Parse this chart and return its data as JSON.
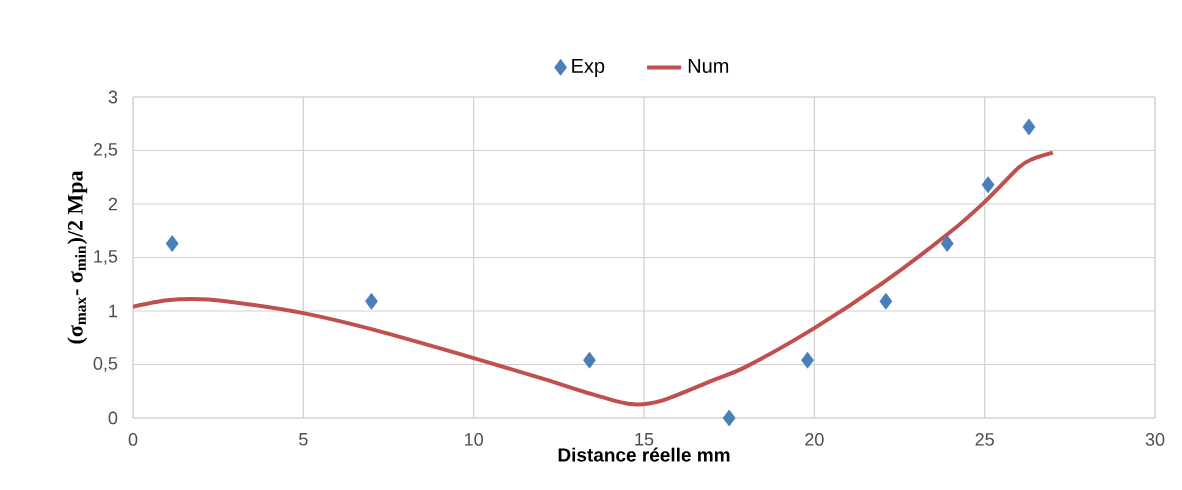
{
  "chart_data": {
    "type": "scatter",
    "xlabel": "Distance réelle mm",
    "ylabel": "(σ$_{max}$- σ$_{min}$)/2 Mpa",
    "xlim": [
      0,
      30
    ],
    "ylim": [
      0,
      3
    ],
    "xticks": [
      0,
      5,
      10,
      15,
      20,
      25,
      30
    ],
    "yticks": [
      0,
      {
        "value": 0.5,
        "label": "0,5"
      },
      1,
      {
        "value": 1.5,
        "label": "1,5"
      },
      2,
      {
        "value": 2.5,
        "label": "2,5"
      },
      3
    ],
    "grid": true,
    "legend": "top",
    "series": [
      {
        "name": "Exp",
        "marker": "diamond",
        "color": "#4a7ebb",
        "x": [
          1.15,
          7.0,
          13.4,
          17.5,
          19.8,
          22.1,
          23.9,
          25.1,
          26.3
        ],
        "values": [
          1.63,
          1.09,
          0.54,
          0,
          0.54,
          1.09,
          1.63,
          2.18,
          2.72
        ]
      },
      {
        "name": "Num",
        "type": "line",
        "marker": "none",
        "line_style": "solid",
        "color": "#c0504d",
        "x": [
          0,
          1,
          2,
          3,
          5,
          7,
          10,
          12,
          13.5,
          14.6,
          15.5,
          17,
          18,
          20,
          22,
          24,
          25,
          26,
          26.4,
          27
        ],
        "values": [
          1.04,
          1.1,
          1.11,
          1.08,
          0.98,
          0.83,
          0.56,
          0.37,
          0.22,
          0.13,
          0.16,
          0.35,
          0.48,
          0.84,
          1.26,
          1.74,
          2.02,
          2.34,
          2.42,
          2.48
        ]
      }
    ]
  }
}
